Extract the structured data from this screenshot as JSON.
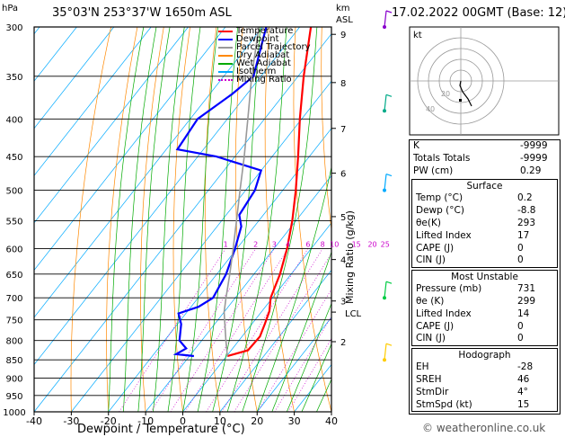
{
  "header": {
    "station": "35°03'N  253°37'W  1650m  ASL",
    "hpa_label": "hPa",
    "km_label": "km",
    "asl_label": "ASL",
    "datetime": "17.02.2022  00GMT  (Base: 12)"
  },
  "axes": {
    "xlabel": "Dewpoint / Temperature (°C)",
    "ylabel_right": "Mixing Ratio (g/kg)",
    "lcl_label": "LCL",
    "credit": "© weatheronline.co.uk"
  },
  "legend": {
    "items": [
      {
        "label": "Temperature",
        "color": "#ff0000",
        "style": "solid"
      },
      {
        "label": "Dewpoint",
        "color": "#0000ff",
        "style": "solid"
      },
      {
        "label": "Parcel Trajectory",
        "color": "#999999",
        "style": "solid"
      },
      {
        "label": "Dry Adiabat",
        "color": "#ff8800",
        "style": "solid"
      },
      {
        "label": "Wet Adiabat",
        "color": "#00aa00",
        "style": "solid"
      },
      {
        "label": "Isotherm",
        "color": "#00aaff",
        "style": "solid"
      },
      {
        "label": "Mixing Ratio",
        "color": "#cc00cc",
        "style": "dotted"
      }
    ]
  },
  "indices": {
    "rows": [
      {
        "label": "K",
        "value": "-9999"
      },
      {
        "label": "Totals Totals",
        "value": "-9999"
      },
      {
        "label": "PW (cm)",
        "value": "0.29"
      }
    ]
  },
  "surface": {
    "title": "Surface",
    "rows": [
      {
        "label": "Temp (°C)",
        "value": "0.2"
      },
      {
        "label": "Dewp (°C)",
        "value": "-8.8"
      },
      {
        "label": "θe(K)",
        "value": "293"
      },
      {
        "label": "Lifted Index",
        "value": "17"
      },
      {
        "label": "CAPE (J)",
        "value": "0"
      },
      {
        "label": "CIN (J)",
        "value": "0"
      }
    ]
  },
  "most_unstable": {
    "title": "Most Unstable",
    "rows": [
      {
        "label": "Pressure (mb)",
        "value": "731"
      },
      {
        "label": "θe (K)",
        "value": "299"
      },
      {
        "label": "Lifted Index",
        "value": "14"
      },
      {
        "label": "CAPE (J)",
        "value": "0"
      },
      {
        "label": "CIN (J)",
        "value": "0"
      }
    ]
  },
  "hodograph_table": {
    "title": "Hodograph",
    "rows": [
      {
        "label": "EH",
        "value": "-28"
      },
      {
        "label": "SREH",
        "value": "46"
      },
      {
        "label": "StmDir",
        "value": "4°"
      },
      {
        "label": "StmSpd (kt)",
        "value": "15"
      }
    ]
  },
  "hodograph": {
    "label": "kt",
    "ring_labels": [
      "20",
      "40"
    ],
    "trace": [
      [
        0,
        0
      ],
      [
        -1,
        -5
      ],
      [
        2,
        -12
      ],
      [
        8,
        -20
      ],
      [
        12,
        -28
      ]
    ]
  },
  "chart_data": {
    "type": "line",
    "title": "35°03'N  253°37'W  1650m  ASL",
    "xlabel": "Dewpoint / Temperature (°C)",
    "ylabel": "hPa",
    "xlim": [
      -40,
      40
    ],
    "ylim": [
      1000,
      300
    ],
    "y_scale": "log",
    "x_ticks": [
      -40,
      -30,
      -20,
      -10,
      0,
      10,
      20,
      30,
      40
    ],
    "pressure_ticks": [
      300,
      350,
      400,
      450,
      500,
      550,
      600,
      650,
      700,
      750,
      800,
      850,
      900,
      950,
      1000
    ],
    "km_ticks": [
      {
        "label": "9",
        "p": 307
      },
      {
        "label": "8",
        "p": 357
      },
      {
        "label": "7",
        "p": 412
      },
      {
        "label": "6",
        "p": 474
      },
      {
        "label": "5",
        "p": 543
      },
      {
        "label": "4",
        "p": 621
      },
      {
        "label": "3",
        "p": 707
      },
      {
        "label": "2",
        "p": 803
      }
    ],
    "lcl_p": 732,
    "mixing_ratio_labels": [
      "1",
      "2",
      "3",
      "4",
      "6",
      "8",
      "10",
      "15",
      "20",
      "25"
    ],
    "mixing_ratio_values": [
      1,
      2,
      3,
      4,
      6,
      8,
      10,
      15,
      20,
      25
    ],
    "series": [
      {
        "name": "Temperature",
        "color": "#ff0000",
        "points": [
          [
            840,
            0.2
          ],
          [
            825,
            4.5
          ],
          [
            790,
            4.8
          ],
          [
            760,
            3.5
          ],
          [
            730,
            2.0
          ],
          [
            700,
            -0.5
          ],
          [
            650,
            -3.0
          ],
          [
            600,
            -6.5
          ],
          [
            550,
            -11.0
          ],
          [
            500,
            -16.5
          ],
          [
            450,
            -23.0
          ],
          [
            400,
            -30.5
          ],
          [
            350,
            -38.5
          ],
          [
            300,
            -47.0
          ]
        ]
      },
      {
        "name": "Dewpoint",
        "color": "#0000ff",
        "points": [
          [
            840,
            -8.8
          ],
          [
            835,
            -14.0
          ],
          [
            820,
            -12.5
          ],
          [
            800,
            -16.0
          ],
          [
            760,
            -19.0
          ],
          [
            735,
            -22.0
          ],
          [
            720,
            -18.0
          ],
          [
            700,
            -16.0
          ],
          [
            650,
            -17.5
          ],
          [
            600,
            -20.5
          ],
          [
            560,
            -23.5
          ],
          [
            540,
            -26.5
          ],
          [
            500,
            -27.5
          ],
          [
            470,
            -30.0
          ],
          [
            450,
            -45.0
          ],
          [
            440,
            -57.0
          ],
          [
            400,
            -58.0
          ],
          [
            370,
            -54.0
          ],
          [
            350,
            -52.0
          ],
          [
            300,
            -59.0
          ]
        ]
      },
      {
        "name": "Parcel Trajectory",
        "color": "#999999",
        "points": [
          [
            840,
            0.2
          ],
          [
            800,
            -3.5
          ],
          [
            732,
            -10.0
          ],
          [
            700,
            -12.5
          ],
          [
            650,
            -16.5
          ],
          [
            600,
            -21.0
          ],
          [
            550,
            -26.0
          ],
          [
            500,
            -31.5
          ],
          [
            450,
            -37.5
          ],
          [
            400,
            -44.5
          ],
          [
            350,
            -52.5
          ],
          [
            300,
            -61.0
          ]
        ]
      }
    ],
    "wind_barbs": [
      {
        "p": 300,
        "color": "#8800cc"
      },
      {
        "p": 390,
        "color": "#00aa88"
      },
      {
        "p": 500,
        "color": "#00aaff"
      },
      {
        "p": 700,
        "color": "#00cc44"
      },
      {
        "p": 850,
        "color": "#ffcc00"
      }
    ]
  }
}
